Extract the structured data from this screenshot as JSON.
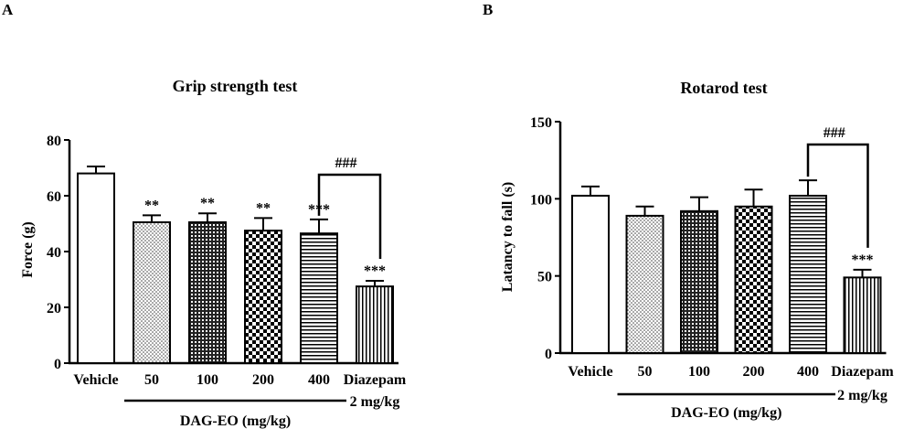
{
  "chart_data": [
    {
      "type": "bar",
      "panel_label": "A",
      "title": "Grip strength test",
      "ylabel": "Force (g)",
      "xlabel": "",
      "ylim": [
        0,
        80
      ],
      "yticks": [
        "0",
        "20",
        "40",
        "60",
        "80"
      ],
      "categories": [
        "Vehicle",
        "50",
        "100",
        "200",
        "400",
        "Diazepam"
      ],
      "category_sublabels": [
        "",
        "",
        "",
        "",
        "",
        "2 mg/kg"
      ],
      "values": [
        68,
        50.5,
        50.5,
        47.5,
        46.5,
        27.5
      ],
      "errors": [
        2.5,
        2.5,
        3.2,
        4.5,
        5,
        2
      ],
      "patterns": [
        "open",
        "dots",
        "grid",
        "checker",
        "hlines",
        "vlines"
      ],
      "significance": [
        "",
        "**",
        "**",
        "**",
        "***",
        "***"
      ],
      "bracket": {
        "from": "400",
        "to": "Diazepam",
        "label": "###"
      },
      "group_label": {
        "text": "DAG-EO (mg/kg)",
        "from": "50",
        "to": "400"
      }
    },
    {
      "type": "bar",
      "panel_label": "B",
      "title": "Rotarod test",
      "ylabel": "Latancy to fall (s)",
      "xlabel": "",
      "ylim": [
        0,
        150
      ],
      "yticks": [
        "0",
        "50",
        "100",
        "150"
      ],
      "categories": [
        "Vehicle",
        "50",
        "100",
        "200",
        "400",
        "Diazepam"
      ],
      "category_sublabels": [
        "",
        "",
        "",
        "",
        "",
        "2 mg/kg"
      ],
      "values": [
        102,
        89,
        92,
        95,
        102,
        49
      ],
      "errors": [
        6,
        6,
        9,
        11,
        10,
        5
      ],
      "patterns": [
        "open",
        "dots",
        "grid",
        "checker",
        "hlines",
        "vlines"
      ],
      "significance": [
        "",
        "",
        "",
        "",
        "",
        "***"
      ],
      "bracket": {
        "from": "400",
        "to": "Diazepam",
        "label": "###"
      },
      "group_label": {
        "text": "DAG-EO (mg/kg)",
        "from": "50",
        "to": "400"
      }
    }
  ]
}
